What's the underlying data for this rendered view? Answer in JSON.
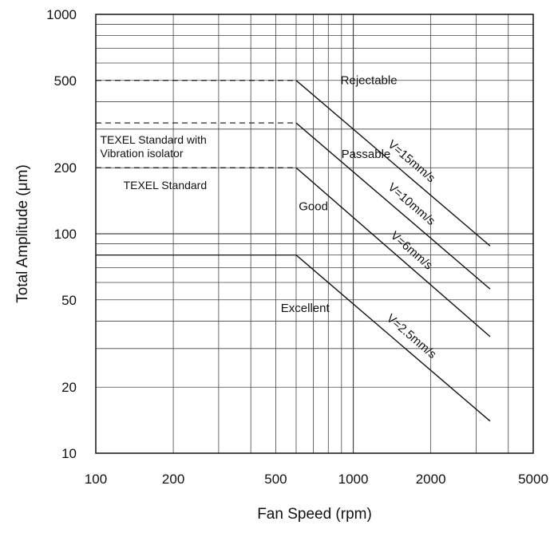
{
  "chart_data": {
    "type": "line",
    "xscale": "log",
    "yscale": "log",
    "xlim": [
      100,
      5000
    ],
    "ylim": [
      10,
      1000
    ],
    "xlabel": "Fan Speed (rpm)",
    "ylabel": "Total Amplitude (μm)",
    "x_ticks": [
      100,
      200,
      500,
      1000,
      2000,
      5000
    ],
    "x_tick_labels": [
      "100",
      "200",
      "500",
      "1000",
      "2000",
      "5000"
    ],
    "y_ticks": [
      10,
      20,
      50,
      100,
      200,
      500,
      1000
    ],
    "y_tick_labels": [
      "10",
      "20",
      "50",
      "100",
      "200",
      "500",
      "1000"
    ],
    "grid": true,
    "series": [
      {
        "name": "V=15mm/s",
        "x": [
          600,
          3400
        ],
        "y": [
          500,
          88
        ]
      },
      {
        "name": "V=10mm/s",
        "x": [
          600,
          3400
        ],
        "y": [
          320,
          56
        ]
      },
      {
        "name": "V=6mm/s",
        "x": [
          600,
          3400
        ],
        "y": [
          200,
          34
        ]
      },
      {
        "name": "V=2.5mm/s",
        "x": [
          600,
          3400
        ],
        "y": [
          80,
          14
        ]
      }
    ],
    "reference_levels": [
      {
        "y": 500,
        "style": "dashed"
      },
      {
        "y": 320,
        "style": "dashed"
      },
      {
        "y": 200,
        "style": "dashed"
      },
      {
        "y": 80,
        "style": "solid"
      }
    ],
    "zone_labels": [
      {
        "text": "Rejectable",
        "x": 1150,
        "y": 480
      },
      {
        "text": "Passable",
        "x": 1120,
        "y": 222
      },
      {
        "text": "Good",
        "x": 700,
        "y": 128
      },
      {
        "text": "Excellent",
        "x": 650,
        "y": 44
      }
    ],
    "standard_labels": [
      {
        "lines": [
          "TEXEL Standard with",
          "Vibration isolator"
        ],
        "x": 104,
        "y": 258
      },
      {
        "lines": [
          "TEXEL Standard"
        ],
        "x": 128,
        "y": 160
      }
    ]
  }
}
